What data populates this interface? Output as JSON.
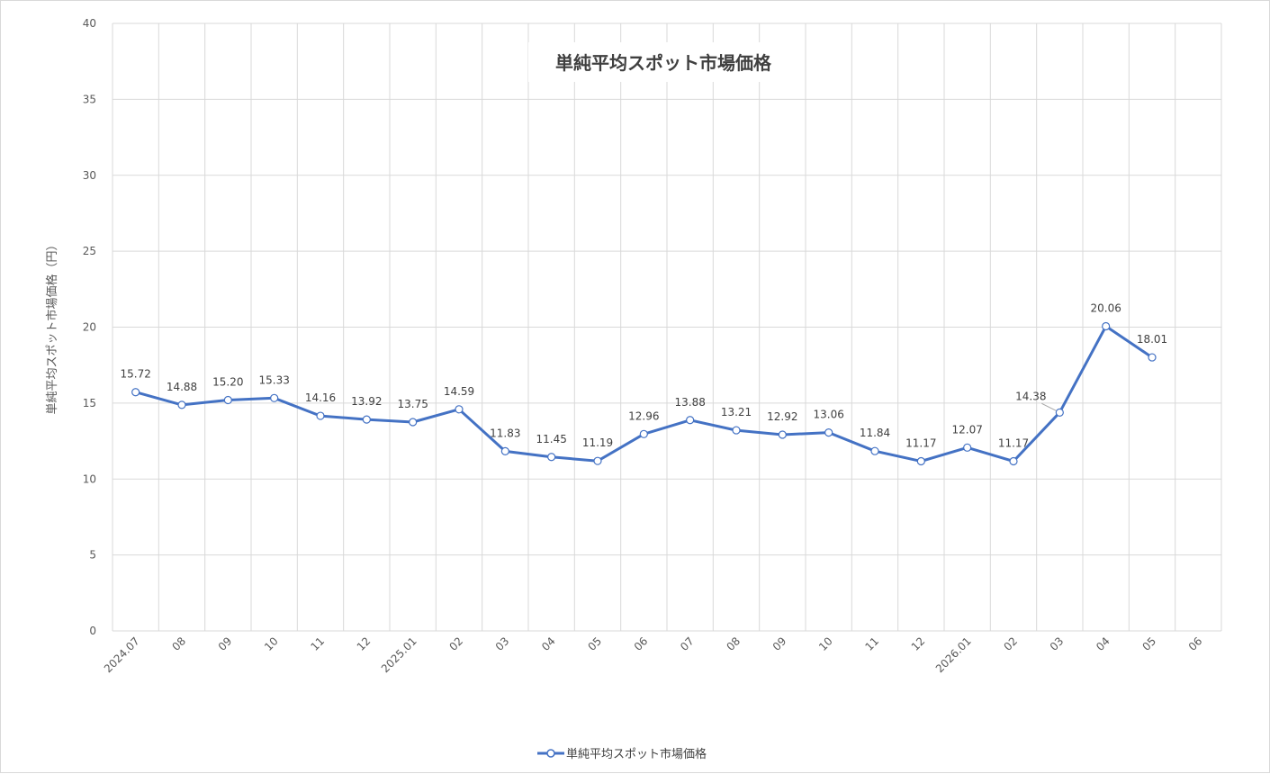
{
  "chart_data": {
    "type": "line",
    "title": "単純平均スポット市場価格",
    "ylabel": "単純平均スポット市場価格（円）",
    "xlabel": "",
    "ylim": [
      0,
      40
    ],
    "yticks": [
      0,
      5,
      10,
      15,
      20,
      25,
      30,
      35,
      40
    ],
    "grid": true,
    "legend_position": "bottom",
    "categories": [
      "2024.07",
      "08",
      "09",
      "10",
      "11",
      "12",
      "2025.01",
      "02",
      "03",
      "04",
      "05",
      "06",
      "07",
      "08",
      "09",
      "10",
      "11",
      "12",
      "2026.01",
      "02",
      "03",
      "04",
      "05",
      "06"
    ],
    "series": [
      {
        "name": "単純平均スポット市場価格",
        "color": "#4472c4",
        "values": [
          15.72,
          14.88,
          15.2,
          15.33,
          14.16,
          13.92,
          13.75,
          14.59,
          11.83,
          11.45,
          11.19,
          12.96,
          13.88,
          13.21,
          12.92,
          13.06,
          11.84,
          11.17,
          12.07,
          11.17,
          14.38,
          20.06,
          18.01,
          null
        ],
        "labels": [
          "15.72",
          "14.88",
          "15.20",
          "15.33",
          "14.16",
          "13.92",
          "13.75",
          "14.59",
          "11.83",
          "11.45",
          "11.19",
          "12.96",
          "13.88",
          "13.21",
          "12.92",
          "13.06",
          "11.84",
          "11.17",
          "12.07",
          "11.17",
          "14.38",
          "20.06",
          "18.01",
          ""
        ]
      }
    ]
  }
}
